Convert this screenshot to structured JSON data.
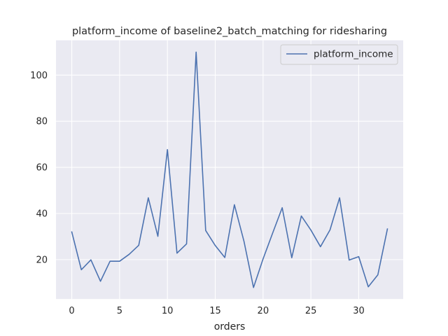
{
  "chart_data": {
    "type": "line",
    "title": "platform_income of baseline2_batch_matching for ridesharing",
    "xlabel": "orders",
    "ylabel": "",
    "xlim": [
      -1.65,
      34.65
    ],
    "ylim": [
      2.9,
      115.1
    ],
    "xticks": [
      0,
      5,
      10,
      15,
      20,
      25,
      30
    ],
    "yticks": [
      20,
      40,
      60,
      80,
      100
    ],
    "grid": true,
    "legend_position": "top-right",
    "series": [
      {
        "name": "platform_income",
        "color": "#4c72b0",
        "x": [
          0,
          1,
          2,
          3,
          4,
          5,
          6,
          7,
          8,
          9,
          10,
          11,
          12,
          13,
          14,
          15,
          16,
          17,
          18,
          19,
          20,
          21,
          22,
          23,
          24,
          25,
          26,
          27,
          28,
          29,
          30,
          31,
          32,
          33
        ],
        "y": [
          32,
          15.6,
          19.9,
          10.6,
          19.3,
          19.3,
          22.3,
          26.2,
          46.8,
          30.1,
          67.7,
          22.8,
          26.8,
          110,
          32.6,
          26.1,
          20.9,
          43.8,
          28,
          7.9,
          20.3,
          31.5,
          42.5,
          20.8,
          38.9,
          32.8,
          25.6,
          32.9,
          46.8,
          19.8,
          21.3,
          8.2,
          13.4,
          33.3
        ]
      }
    ]
  },
  "colors": {
    "background": "#ffffff",
    "plot_area": "#eaeaf2",
    "grid": "#ffffff",
    "line": "#4c72b0",
    "text": "#262626"
  }
}
